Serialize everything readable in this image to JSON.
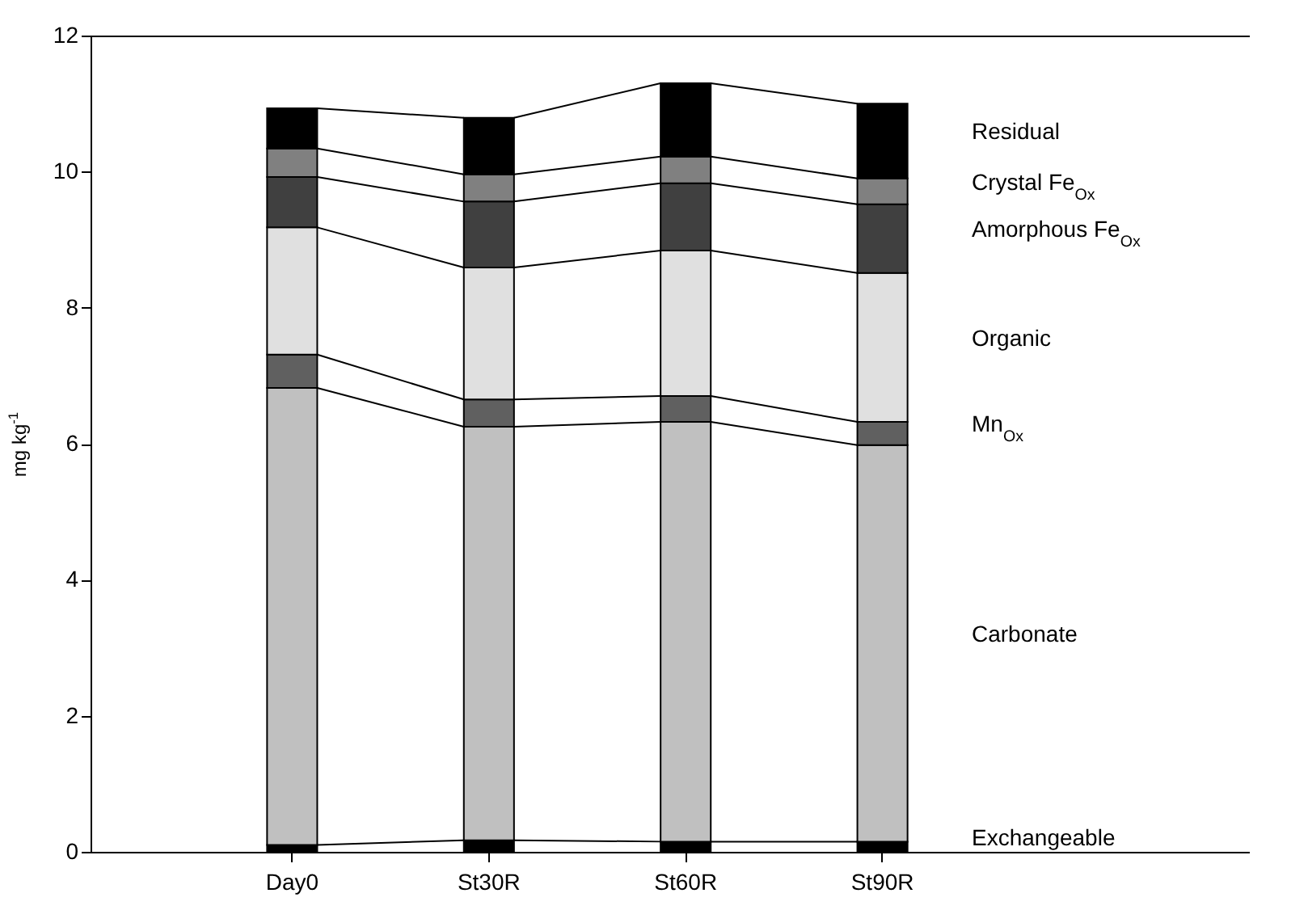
{
  "chart_data": {
    "type": "bar",
    "stacked": true,
    "ylabel": "mg kg$^{-1}$",
    "categories": [
      "Day0",
      "St30R",
      "St60R",
      "St90R"
    ],
    "ylim": [
      0,
      12
    ],
    "yticks": [
      0,
      2,
      4,
      6,
      8,
      10,
      12
    ],
    "series": [
      {
        "name": "Exchangeable",
        "color": "#000000",
        "values": [
          0.1,
          0.17,
          0.15,
          0.15
        ]
      },
      {
        "name": "Carbonate",
        "color": "#c0c0c0",
        "values": [
          6.72,
          6.08,
          6.17,
          5.83
        ]
      },
      {
        "name": "Mn$_{Ox}$",
        "color": "#606060",
        "values": [
          0.49,
          0.4,
          0.38,
          0.34
        ]
      },
      {
        "name": "Organic",
        "color": "#e0e0e0",
        "values": [
          1.87,
          1.94,
          2.14,
          2.19
        ]
      },
      {
        "name": "Amorphous Fe$_{Ox}$",
        "color": "#404040",
        "values": [
          0.74,
          0.97,
          0.99,
          1.01
        ]
      },
      {
        "name": "Crystal Fe$_{Ox}$",
        "color": "#808080",
        "values": [
          0.42,
          0.4,
          0.39,
          0.38
        ]
      },
      {
        "name": "Residual",
        "color": "#000000",
        "values": [
          0.59,
          0.83,
          1.08,
          1.1
        ]
      }
    ]
  }
}
